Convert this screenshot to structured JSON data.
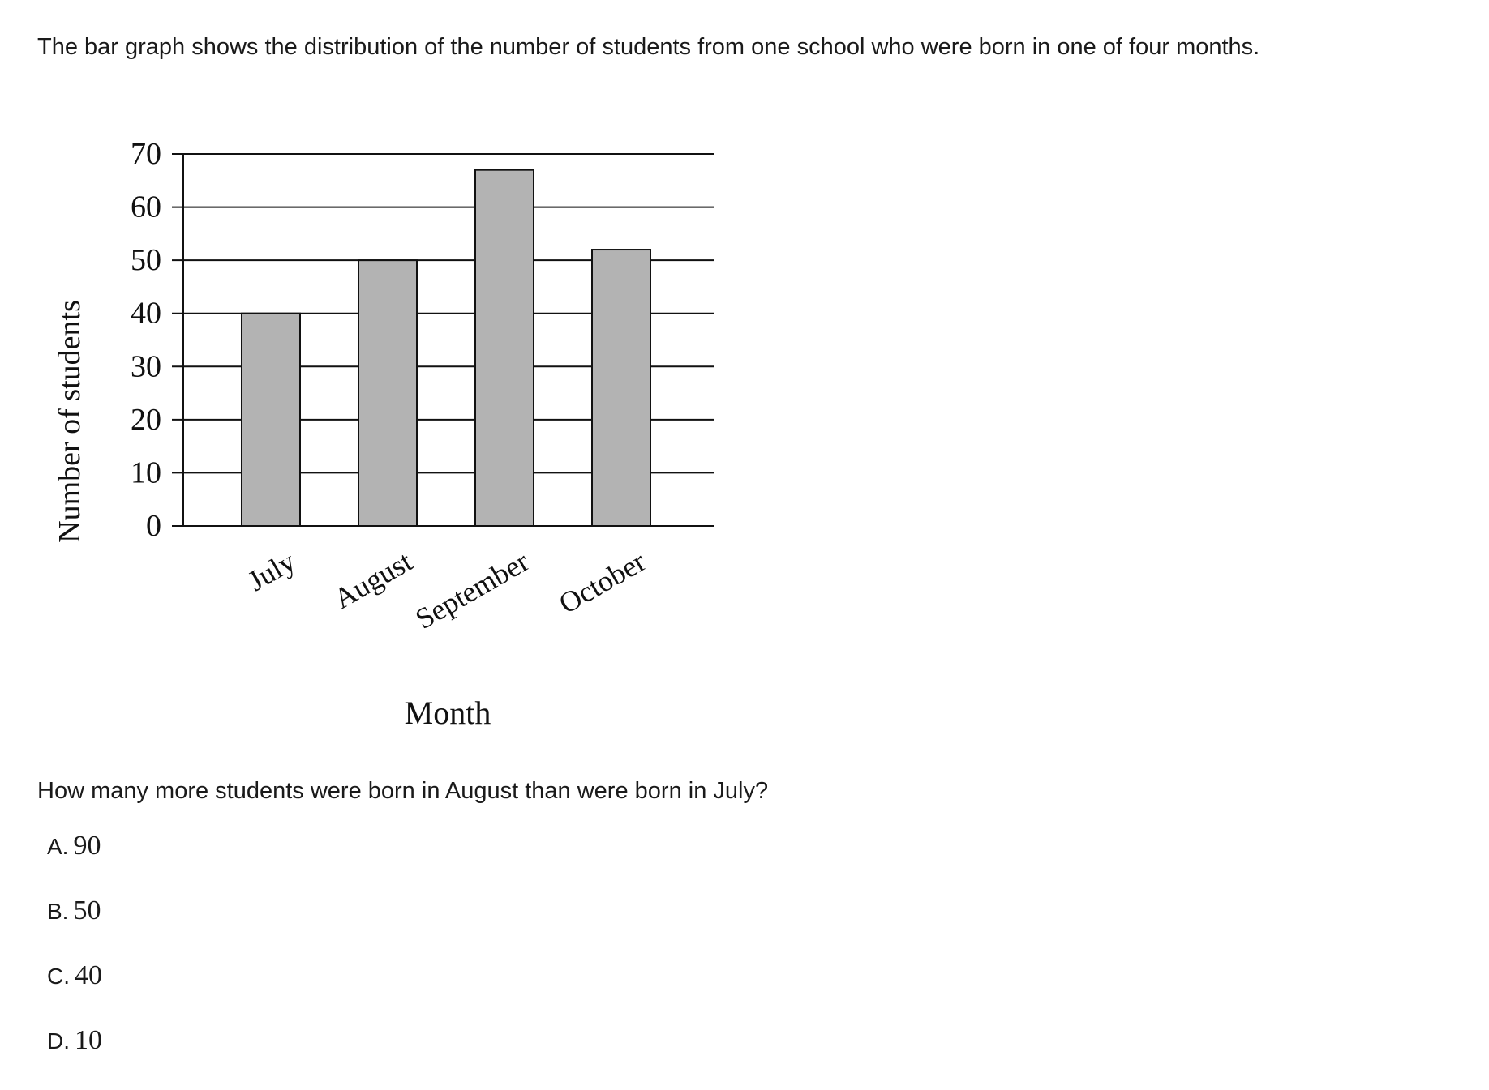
{
  "intro_text": "The bar graph shows the distribution of the number of students from one school who were born in one of four months.",
  "question_text": "How many more students were born in August than were born in July?",
  "choices": [
    {
      "letter": "A.",
      "text": "90"
    },
    {
      "letter": "B.",
      "text": "50"
    },
    {
      "letter": "C.",
      "text": "40"
    },
    {
      "letter": "D.",
      "text": "10"
    }
  ],
  "chart_data": {
    "type": "bar",
    "categories": [
      "July",
      "August",
      "September",
      "October"
    ],
    "values": [
      40,
      50,
      67,
      52
    ],
    "title": "",
    "xlabel": "Month",
    "ylabel": "Number of students",
    "ylim": [
      0,
      70
    ],
    "yticks": [
      0,
      10,
      20,
      30,
      40,
      50,
      60,
      70
    ],
    "grid": true,
    "legend": "none",
    "bar_color": "#b3b3b3",
    "edge_color": "#111111"
  }
}
